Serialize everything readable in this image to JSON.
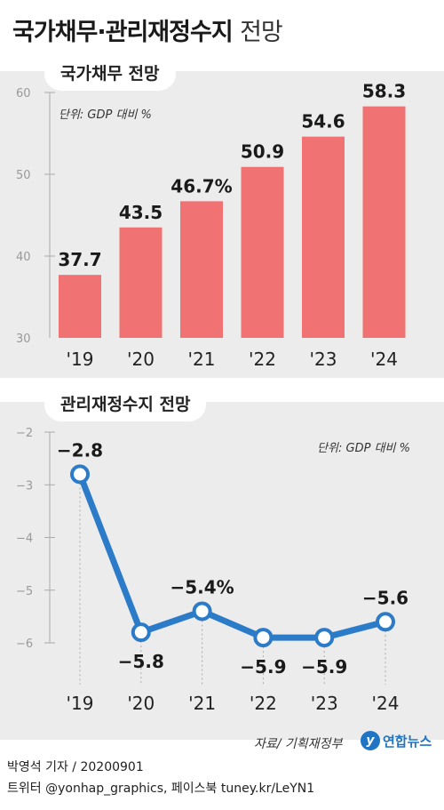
{
  "title": {
    "bold": "국가채무·관리재정수지",
    "light": "전망"
  },
  "source": "자료/ 기획재정부",
  "logo": {
    "mark": "y",
    "text": "연합뉴스"
  },
  "credits": {
    "line1": "박영석 기자 / 20200901",
    "line2": "트위터 @yonhap_graphics, 페이스북 tuney.kr/LeYN1"
  },
  "colors": {
    "bar": "#f07272",
    "line": "#2b7bc8",
    "panel": "#ececec"
  },
  "chart_data": [
    {
      "type": "bar",
      "title": "국가채무 전망",
      "unit_note": "단위: GDP 대비 %",
      "categories": [
        "'19",
        "'20",
        "'21",
        "'22",
        "'23",
        "'24"
      ],
      "values": [
        37.7,
        43.5,
        46.7,
        50.9,
        54.6,
        58.3
      ],
      "value_labels": [
        "37.7",
        "43.5",
        "46.7%",
        "50.9",
        "54.6",
        "58.3"
      ],
      "yticks": [
        "30",
        "40",
        "50",
        "60"
      ],
      "ylim": [
        30,
        60
      ]
    },
    {
      "type": "line",
      "title": "관리재정수지 전망",
      "unit_note": "단위: GDP 대비 %",
      "categories": [
        "'19",
        "'20",
        "'21",
        "'22",
        "'23",
        "'24"
      ],
      "values": [
        -2.8,
        -5.8,
        -5.4,
        -5.9,
        -5.9,
        -5.6
      ],
      "value_labels": [
        "−2.8",
        "−5.8",
        "−5.4%",
        "−5.9",
        "−5.9",
        "−5.6"
      ],
      "yticks": [
        "−2",
        "−3",
        "−4",
        "−5",
        "−6"
      ],
      "ylim": [
        -6,
        -2
      ]
    }
  ]
}
